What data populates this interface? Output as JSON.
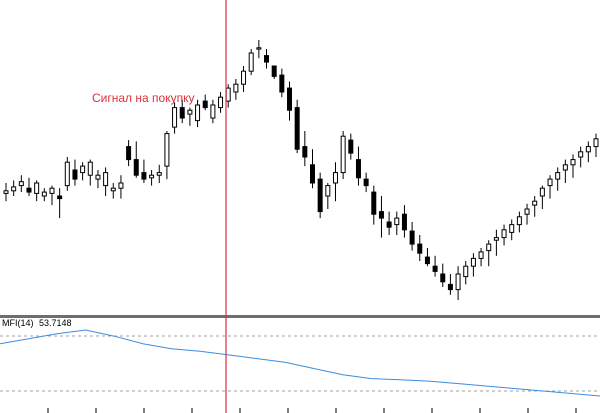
{
  "chart": {
    "signal_label": "Сигнал на покупку",
    "colors": {
      "background": "#ffffff",
      "candle": "#000000",
      "signal_line": "#e0303a",
      "signal_text": "#e0303a",
      "separator": "#6e6e6e",
      "mfi_line": "#3c8de0",
      "level_line": "#a0a0a0"
    }
  },
  "indicator": {
    "name": "MFI(14)",
    "value": "53.7148",
    "levels": [
      80,
      20
    ]
  },
  "chart_data": {
    "type": "candlestick",
    "price_candles": [
      {
        "o": 174,
        "h": 168,
        "l": 182,
        "c": 176
      },
      {
        "o": 176,
        "h": 172,
        "l": 184,
        "c": 179
      },
      {
        "o": 180,
        "h": 175,
        "l": 188,
        "c": 183
      },
      {
        "o": 178,
        "h": 172,
        "l": 186,
        "c": 175
      },
      {
        "o": 174,
        "h": 168,
        "l": 184,
        "c": 182
      },
      {
        "o": 172,
        "h": 168,
        "l": 178,
        "c": 175
      },
      {
        "o": 174,
        "h": 165,
        "l": 180,
        "c": 178
      },
      {
        "o": 172,
        "h": 155,
        "l": 178,
        "c": 170
      },
      {
        "o": 180,
        "h": 176,
        "l": 202,
        "c": 198
      },
      {
        "o": 192,
        "h": 180,
        "l": 200,
        "c": 185
      },
      {
        "o": 190,
        "h": 184,
        "l": 198,
        "c": 195
      },
      {
        "o": 188,
        "h": 180,
        "l": 200,
        "c": 198
      },
      {
        "o": 185,
        "h": 178,
        "l": 192,
        "c": 188
      },
      {
        "o": 180,
        "h": 172,
        "l": 194,
        "c": 190
      },
      {
        "o": 176,
        "h": 170,
        "l": 182,
        "c": 178
      },
      {
        "o": 178,
        "h": 170,
        "l": 188,
        "c": 182
      },
      {
        "o": 210,
        "h": 195,
        "l": 215,
        "c": 200
      },
      {
        "o": 200,
        "h": 186,
        "l": 214,
        "c": 188
      },
      {
        "o": 190,
        "h": 182,
        "l": 200,
        "c": 185
      },
      {
        "o": 186,
        "h": 180,
        "l": 192,
        "c": 188
      },
      {
        "o": 188,
        "h": 182,
        "l": 196,
        "c": 190
      },
      {
        "o": 195,
        "h": 185,
        "l": 222,
        "c": 220
      },
      {
        "o": 225,
        "h": 220,
        "l": 244,
        "c": 240
      },
      {
        "o": 240,
        "h": 228,
        "l": 246,
        "c": 232
      },
      {
        "o": 235,
        "h": 226,
        "l": 240,
        "c": 238
      },
      {
        "o": 230,
        "h": 225,
        "l": 246,
        "c": 242
      },
      {
        "o": 245,
        "h": 238,
        "l": 250,
        "c": 240
      },
      {
        "o": 232,
        "h": 228,
        "l": 246,
        "c": 242
      },
      {
        "o": 240,
        "h": 236,
        "l": 252,
        "c": 248
      },
      {
        "o": 245,
        "h": 240,
        "l": 258,
        "c": 255
      },
      {
        "o": 252,
        "h": 246,
        "l": 262,
        "c": 258
      },
      {
        "o": 258,
        "h": 252,
        "l": 272,
        "c": 268
      },
      {
        "o": 268,
        "h": 265,
        "l": 285,
        "c": 282
      },
      {
        "o": 285,
        "h": 278,
        "l": 292,
        "c": 286
      },
      {
        "o": 280,
        "h": 270,
        "l": 285,
        "c": 275
      },
      {
        "o": 272,
        "h": 262,
        "l": 270,
        "c": 264
      },
      {
        "o": 265,
        "h": 248,
        "l": 270,
        "c": 252
      },
      {
        "o": 255,
        "h": 230,
        "l": 260,
        "c": 238
      },
      {
        "o": 240,
        "h": 205,
        "l": 246,
        "c": 208
      },
      {
        "o": 210,
        "h": 195,
        "l": 222,
        "c": 202
      },
      {
        "o": 196,
        "h": 178,
        "l": 208,
        "c": 182
      },
      {
        "o": 185,
        "h": 155,
        "l": 190,
        "c": 160
      },
      {
        "o": 172,
        "h": 162,
        "l": 182,
        "c": 180
      },
      {
        "o": 182,
        "h": 168,
        "l": 198,
        "c": 190
      },
      {
        "o": 190,
        "h": 185,
        "l": 222,
        "c": 218
      },
      {
        "o": 215,
        "h": 200,
        "l": 220,
        "c": 205
      },
      {
        "o": 200,
        "h": 180,
        "l": 210,
        "c": 186
      },
      {
        "o": 185,
        "h": 175,
        "l": 190,
        "c": 180
      },
      {
        "o": 175,
        "h": 150,
        "l": 180,
        "c": 158
      },
      {
        "o": 160,
        "h": 140,
        "l": 172,
        "c": 155
      },
      {
        "o": 152,
        "h": 142,
        "l": 160,
        "c": 148
      },
      {
        "o": 150,
        "h": 142,
        "l": 160,
        "c": 155
      },
      {
        "o": 158,
        "h": 140,
        "l": 165,
        "c": 146
      },
      {
        "o": 145,
        "h": 130,
        "l": 152,
        "c": 135
      },
      {
        "o": 135,
        "h": 122,
        "l": 142,
        "c": 128
      },
      {
        "o": 125,
        "h": 118,
        "l": 132,
        "c": 120
      },
      {
        "o": 118,
        "h": 110,
        "l": 126,
        "c": 114
      },
      {
        "o": 112,
        "h": 102,
        "l": 120,
        "c": 106
      },
      {
        "o": 104,
        "h": 96,
        "l": 112,
        "c": 100
      },
      {
        "o": 100,
        "h": 92,
        "l": 118,
        "c": 112
      },
      {
        "o": 110,
        "h": 104,
        "l": 122,
        "c": 118
      },
      {
        "o": 118,
        "h": 110,
        "l": 128,
        "c": 124
      },
      {
        "o": 124,
        "h": 118,
        "l": 132,
        "c": 129
      },
      {
        "o": 130,
        "h": 118,
        "l": 138,
        "c": 135
      },
      {
        "o": 138,
        "h": 126,
        "l": 146,
        "c": 140
      },
      {
        "o": 140,
        "h": 134,
        "l": 150,
        "c": 146
      },
      {
        "o": 144,
        "h": 138,
        "l": 154,
        "c": 150
      },
      {
        "o": 150,
        "h": 144,
        "l": 160,
        "c": 156
      },
      {
        "o": 158,
        "h": 150,
        "l": 166,
        "c": 162
      },
      {
        "o": 165,
        "h": 156,
        "l": 172,
        "c": 168
      },
      {
        "o": 172,
        "h": 162,
        "l": 180,
        "c": 178
      },
      {
        "o": 180,
        "h": 170,
        "l": 188,
        "c": 185
      },
      {
        "o": 185,
        "h": 176,
        "l": 194,
        "c": 190
      },
      {
        "o": 192,
        "h": 182,
        "l": 200,
        "c": 196
      },
      {
        "o": 196,
        "h": 186,
        "l": 204,
        "c": 200
      },
      {
        "o": 202,
        "h": 194,
        "l": 210,
        "c": 206
      },
      {
        "o": 206,
        "h": 198,
        "l": 214,
        "c": 210
      },
      {
        "o": 210,
        "h": 202,
        "l": 220,
        "c": 216
      }
    ],
    "mfi_values": [
      30,
      34,
      38,
      41,
      36,
      30,
      26,
      24,
      21,
      18,
      15,
      10,
      5,
      2,
      1,
      0,
      -2,
      -4,
      -6,
      -8,
      -10,
      -12
    ]
  }
}
